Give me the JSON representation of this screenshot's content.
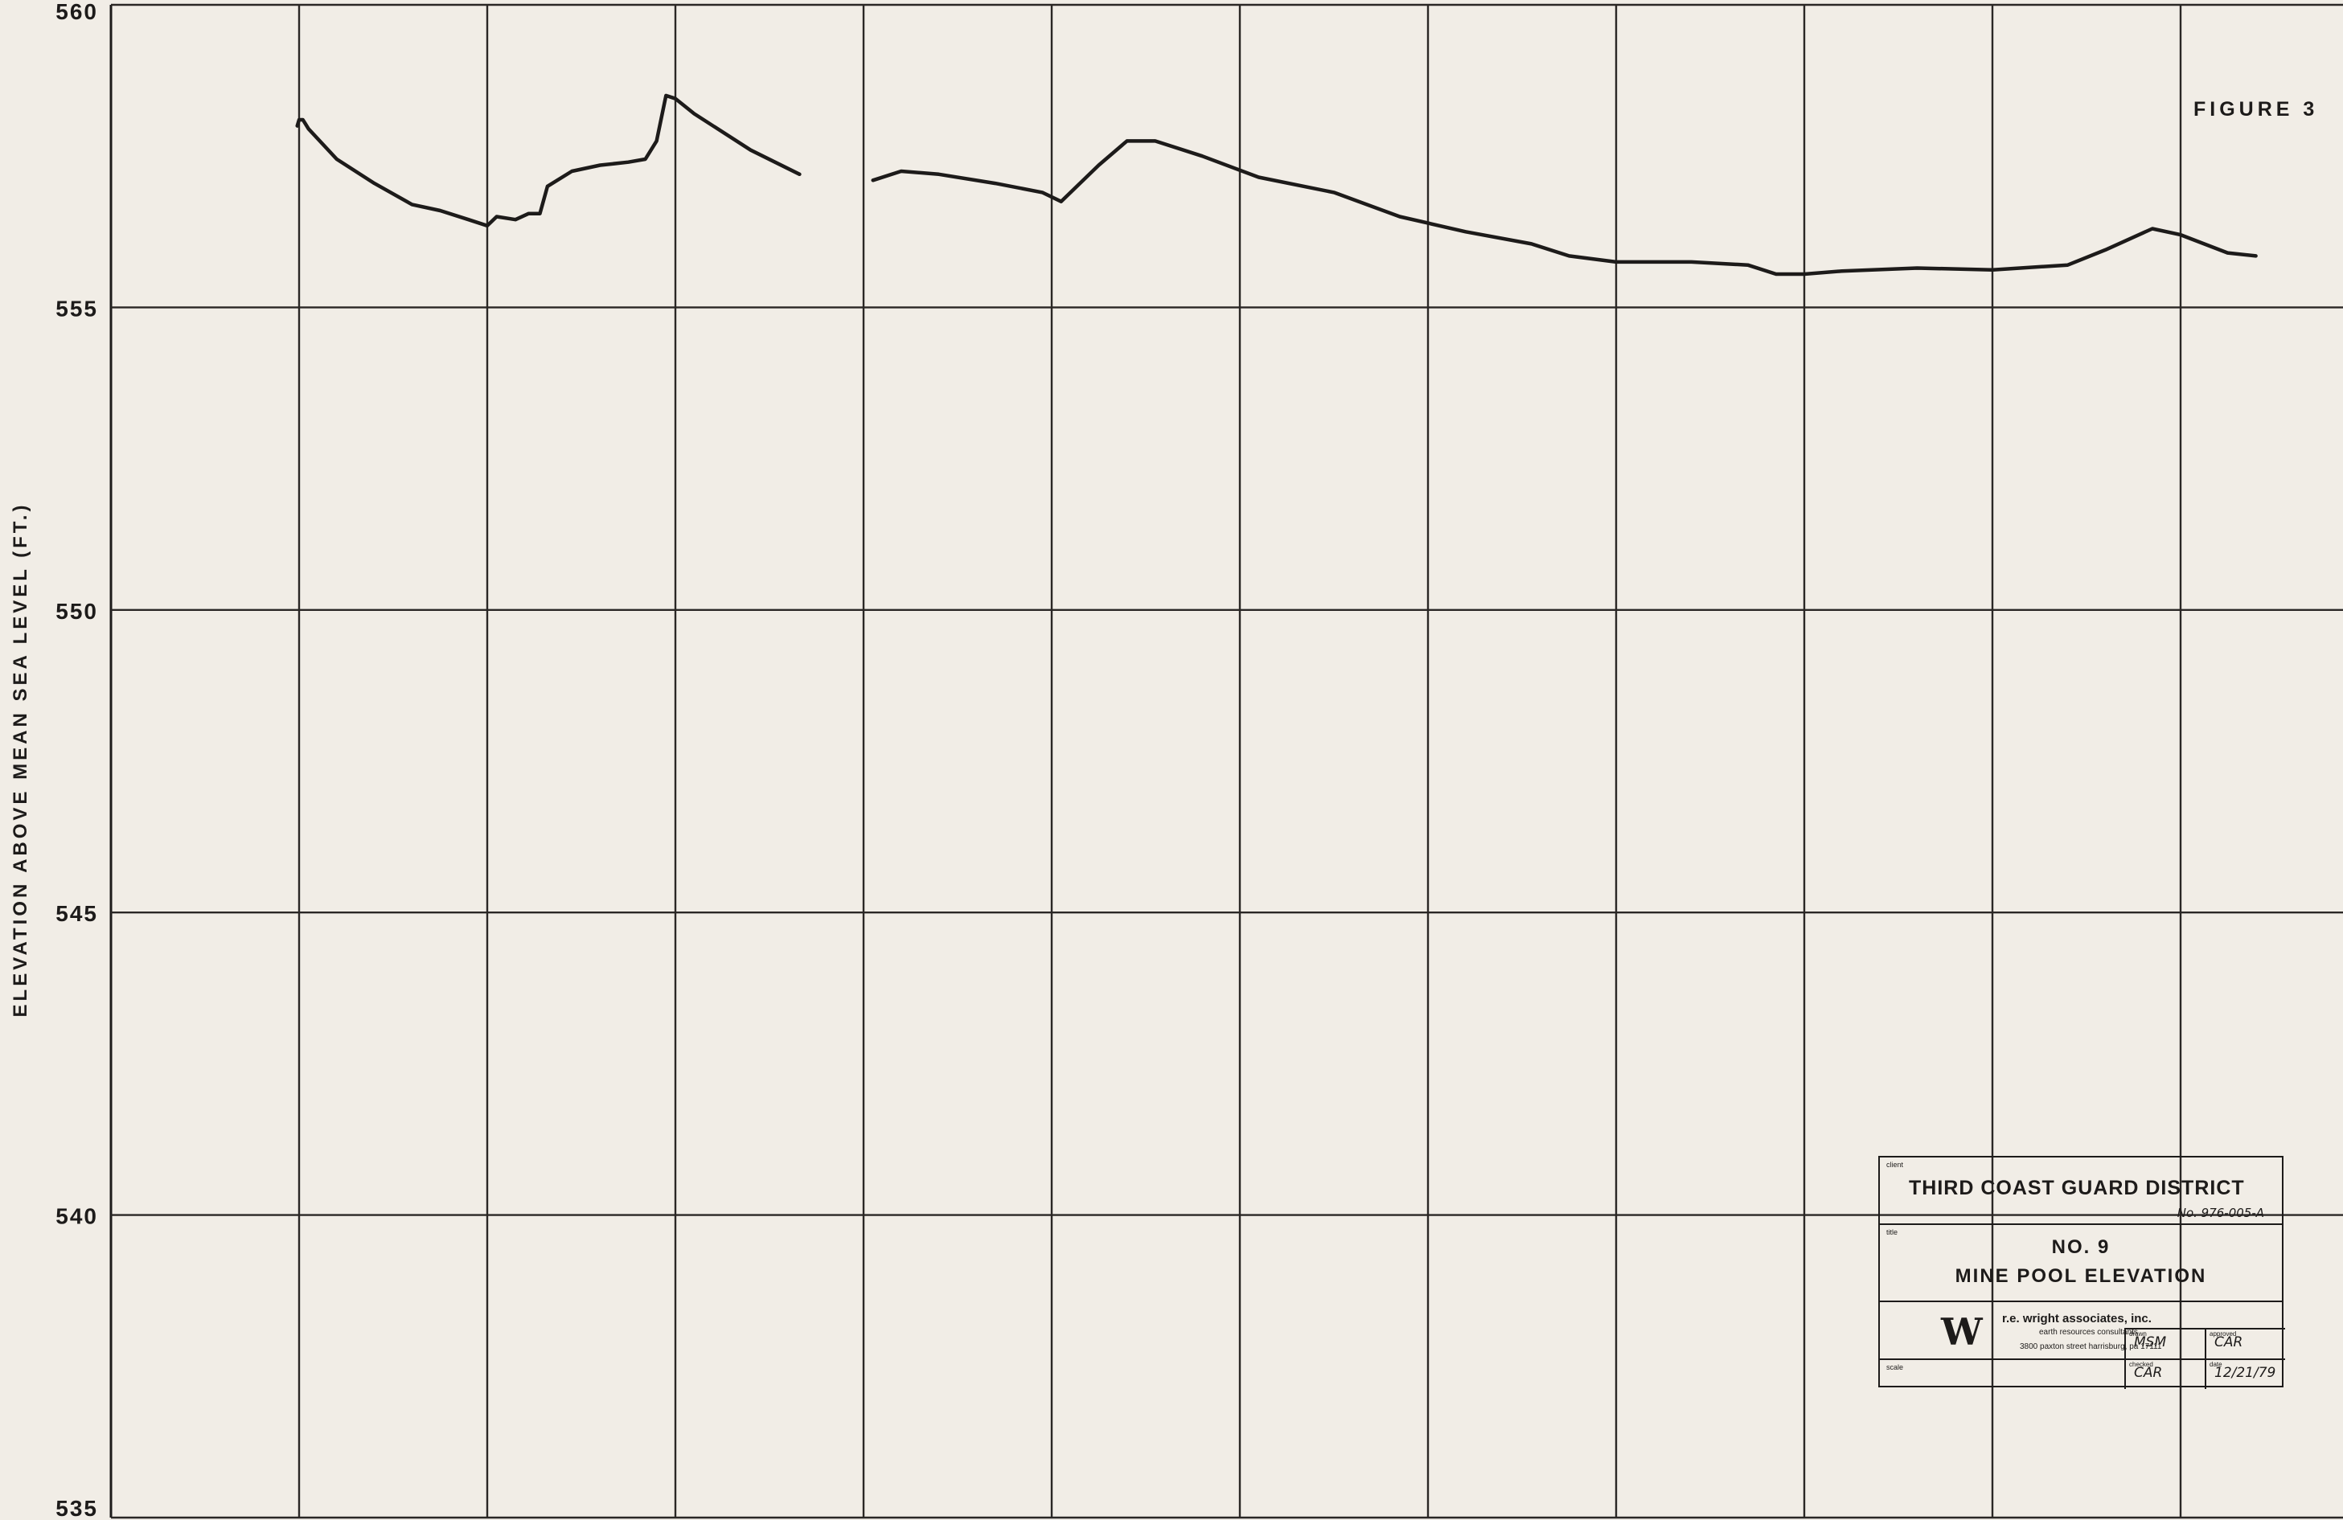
{
  "chart_data": {
    "type": "line",
    "title": "",
    "xlabel": "",
    "ylabel": "ELEVATION ABOVE MEAN SEA LEVEL (FT.)",
    "ylim": [
      535,
      560
    ],
    "y_ticks": [
      560,
      555,
      550,
      545,
      540,
      535
    ],
    "y_tick_labels": [
      "560",
      "555",
      "550",
      "545",
      "540",
      "535"
    ],
    "x_divisions": 12,
    "xlim": [
      0,
      12
    ],
    "grid": true,
    "line_color": "#1d1b1a",
    "series": [
      {
        "values": [
          [
            0.99,
            558.0
          ],
          [
            1.0,
            558.1
          ],
          [
            1.02,
            558.1
          ],
          [
            1.05,
            557.95
          ],
          [
            1.2,
            557.45
          ],
          [
            1.4,
            557.05
          ],
          [
            1.6,
            556.7
          ],
          [
            1.75,
            556.6
          ],
          [
            1.9,
            556.45
          ],
          [
            2.0,
            556.35
          ],
          [
            2.05,
            556.5
          ],
          [
            2.15,
            556.45
          ],
          [
            2.22,
            556.55
          ],
          [
            2.28,
            556.55
          ],
          [
            2.32,
            557.0
          ],
          [
            2.45,
            557.25
          ],
          [
            2.6,
            557.35
          ],
          [
            2.75,
            557.4
          ],
          [
            2.84,
            557.45
          ],
          [
            2.9,
            557.75
          ],
          [
            2.95,
            558.5
          ],
          [
            3.0,
            558.45
          ],
          [
            3.1,
            558.2
          ],
          [
            3.4,
            557.6
          ],
          [
            3.66,
            557.2
          ]
        ]
      },
      {
        "values": [
          [
            4.05,
            557.1
          ],
          [
            4.2,
            557.25
          ],
          [
            4.4,
            557.2
          ],
          [
            4.7,
            557.05
          ],
          [
            4.95,
            556.9
          ],
          [
            5.05,
            556.75
          ],
          [
            5.25,
            557.35
          ],
          [
            5.4,
            557.75
          ],
          [
            5.55,
            557.75
          ],
          [
            5.8,
            557.5
          ],
          [
            6.1,
            557.15
          ],
          [
            6.5,
            556.9
          ],
          [
            6.85,
            556.5
          ],
          [
            7.2,
            556.25
          ],
          [
            7.55,
            556.05
          ],
          [
            7.75,
            555.85
          ],
          [
            8.0,
            555.75
          ],
          [
            8.4,
            555.75
          ],
          [
            8.7,
            555.7
          ],
          [
            8.85,
            555.55
          ],
          [
            9.0,
            555.55
          ],
          [
            9.2,
            555.6
          ],
          [
            9.6,
            555.65
          ],
          [
            10.0,
            555.62
          ],
          [
            10.4,
            555.7
          ],
          [
            10.6,
            555.95
          ],
          [
            10.85,
            556.3
          ],
          [
            11.0,
            556.2
          ],
          [
            11.25,
            555.9
          ],
          [
            11.4,
            555.85
          ]
        ]
      }
    ]
  },
  "figure_label": "FIGURE 3",
  "title_block": {
    "client_label": "client",
    "client": "THIRD COAST GUARD DISTRICT",
    "job_no": "No. 976-005-A",
    "title_label": "title",
    "title_line1": "NO. 9",
    "title_line2": "MINE POOL ELEVATION",
    "logo": "W",
    "firm_name": "r.e. wright associates, inc.",
    "firm_subtitle": "earth resources consultants",
    "firm_address": "3800 paxton street harrisburg, pa 17111",
    "scale_label": "scale",
    "drawn_label": "drawn",
    "drawn": "MSM",
    "approved_label": "approved",
    "approved": "CAR",
    "checked_label": "checked",
    "checked": "CAR",
    "date_label": "date",
    "date": "12/21/79"
  }
}
